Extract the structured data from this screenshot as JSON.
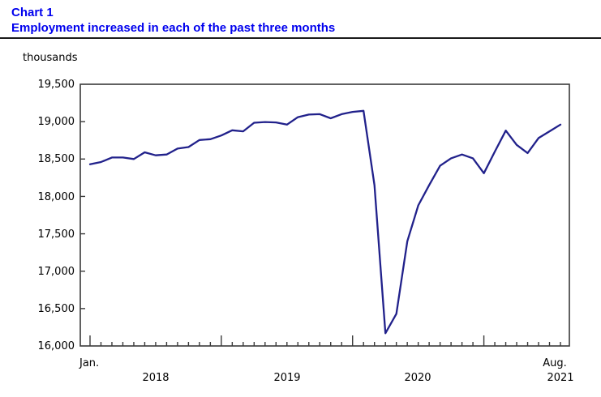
{
  "header": {
    "chart_number": "Chart 1",
    "title": "Employment increased in each of the past three months"
  },
  "unit_label": "thousands",
  "chart_data": {
    "type": "line",
    "title": "Chart 1",
    "subtitle": "Employment increased in each of the past three months",
    "ylabel": "thousands",
    "grid": "off",
    "legend": "none",
    "y_axis": {
      "min": 16000,
      "max": 19500,
      "step": 500,
      "tick_labels": [
        "19,500",
        "19,000",
        "18,500",
        "18,000",
        "17,500",
        "17,000",
        "16,500",
        "16,000"
      ]
    },
    "x_axis": {
      "first_tick_label": "Jan.",
      "year_labels": [
        "2018",
        "2019",
        "2020",
        "2021"
      ],
      "last_month_label": "Aug.",
      "last_year_label": "2021",
      "tick_frequency": "monthly",
      "tall_ticks_at": "January of each year"
    },
    "x": [
      "2018-01",
      "2018-02",
      "2018-03",
      "2018-04",
      "2018-05",
      "2018-06",
      "2018-07",
      "2018-08",
      "2018-09",
      "2018-10",
      "2018-11",
      "2018-12",
      "2019-01",
      "2019-02",
      "2019-03",
      "2019-04",
      "2019-05",
      "2019-06",
      "2019-07",
      "2019-08",
      "2019-09",
      "2019-10",
      "2019-11",
      "2019-12",
      "2020-01",
      "2020-02",
      "2020-03",
      "2020-04",
      "2020-05",
      "2020-06",
      "2020-07",
      "2020-08",
      "2020-09",
      "2020-10",
      "2020-11",
      "2020-12",
      "2021-01",
      "2021-02",
      "2021-03",
      "2021-04",
      "2021-05",
      "2021-06",
      "2021-07",
      "2021-08"
    ],
    "series": [
      {
        "name": "Employment (thousands)",
        "values": [
          18430,
          18460,
          18520,
          18520,
          18500,
          18590,
          18550,
          18560,
          18640,
          18660,
          18755,
          18765,
          18815,
          18885,
          18870,
          18985,
          18995,
          18990,
          18960,
          19060,
          19095,
          19100,
          19045,
          19100,
          19130,
          19145,
          18150,
          16170,
          16430,
          17400,
          17880,
          18150,
          18410,
          18510,
          18560,
          18510,
          18310,
          18600,
          18880,
          18690,
          18580,
          18780,
          18870,
          18960
        ]
      }
    ],
    "colors": {
      "line": "#21218B",
      "title_text": "#0000EE",
      "axis": "#3a3a3a",
      "label_text": "#000000"
    }
  }
}
